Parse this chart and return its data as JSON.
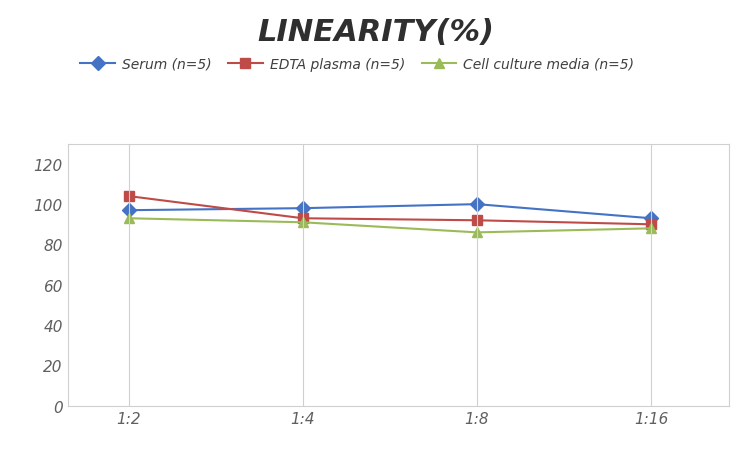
{
  "title": "LINEARITY(%)",
  "x_labels": [
    "1:2",
    "1:4",
    "1:8",
    "1:16"
  ],
  "x_positions": [
    0,
    1,
    2,
    3
  ],
  "series": [
    {
      "label": "Serum (n=5)",
      "color": "#4472C4",
      "marker": "D",
      "markersize": 7,
      "values": [
        97,
        98,
        100,
        93
      ]
    },
    {
      "label": "EDTA plasma (n=5)",
      "color": "#BE4B48",
      "marker": "s",
      "markersize": 7,
      "values": [
        104,
        93,
        92,
        90
      ]
    },
    {
      "label": "Cell culture media (n=5)",
      "color": "#9BBB59",
      "marker": "^",
      "markersize": 7,
      "values": [
        93,
        91,
        86,
        88
      ]
    }
  ],
  "ylim": [
    0,
    130
  ],
  "yticks": [
    0,
    20,
    40,
    60,
    80,
    100,
    120
  ],
  "background_color": "#FFFFFF",
  "grid_color": "#D0D0D0",
  "title_fontsize": 22,
  "legend_fontsize": 10,
  "tick_fontsize": 11
}
